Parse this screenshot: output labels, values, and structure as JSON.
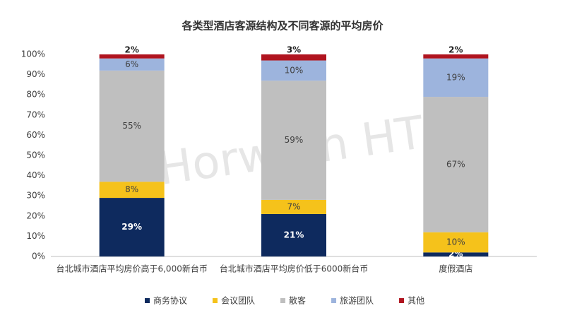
{
  "chart_data": {
    "type": "stacked_bar",
    "title": "各类型酒店客源结构及不同客源的平均房价",
    "watermark": "Horwath HTL",
    "categories": [
      "台北城市酒店平均房价高于6,000新台币",
      "台北城市酒店平均房价低于6000新台币",
      "度假酒店"
    ],
    "series": [
      {
        "name": "商务协议",
        "color": "#0e2a5e",
        "values": [
          29,
          21,
          2
        ],
        "value_labels": [
          "29%",
          "21%",
          "2%"
        ]
      },
      {
        "name": "会议团队",
        "color": "#f5c21b",
        "values": [
          8,
          7,
          10
        ],
        "value_labels": [
          "8%",
          "7%",
          "10%"
        ]
      },
      {
        "name": "散客",
        "color": "#bfbfbf",
        "values": [
          55,
          59,
          67
        ],
        "value_labels": [
          "55%",
          "59%",
          "67%"
        ]
      },
      {
        "name": "旅游团队",
        "color": "#9db4dd",
        "values": [
          6,
          10,
          19
        ],
        "value_labels": [
          "6%",
          "10%",
          "19%"
        ]
      },
      {
        "name": "其他",
        "color": "#b0141f",
        "values": [
          2,
          3,
          2
        ],
        "value_labels": [
          "2%",
          "3%",
          "2%"
        ]
      }
    ],
    "ylim": [
      0,
      100
    ],
    "yticks": [
      {
        "value": 0,
        "label": "0%"
      },
      {
        "value": 10,
        "label": "10%"
      },
      {
        "value": 20,
        "label": "20%"
      },
      {
        "value": 30,
        "label": "30%"
      },
      {
        "value": 40,
        "label": "40%"
      },
      {
        "value": 50,
        "label": "50%"
      },
      {
        "value": 60,
        "label": "60%"
      },
      {
        "value": 70,
        "label": "70%"
      },
      {
        "value": 80,
        "label": "80%"
      },
      {
        "value": 90,
        "label": "90%"
      },
      {
        "value": 100,
        "label": "100%"
      }
    ],
    "grid": false,
    "legend": "bottom"
  }
}
